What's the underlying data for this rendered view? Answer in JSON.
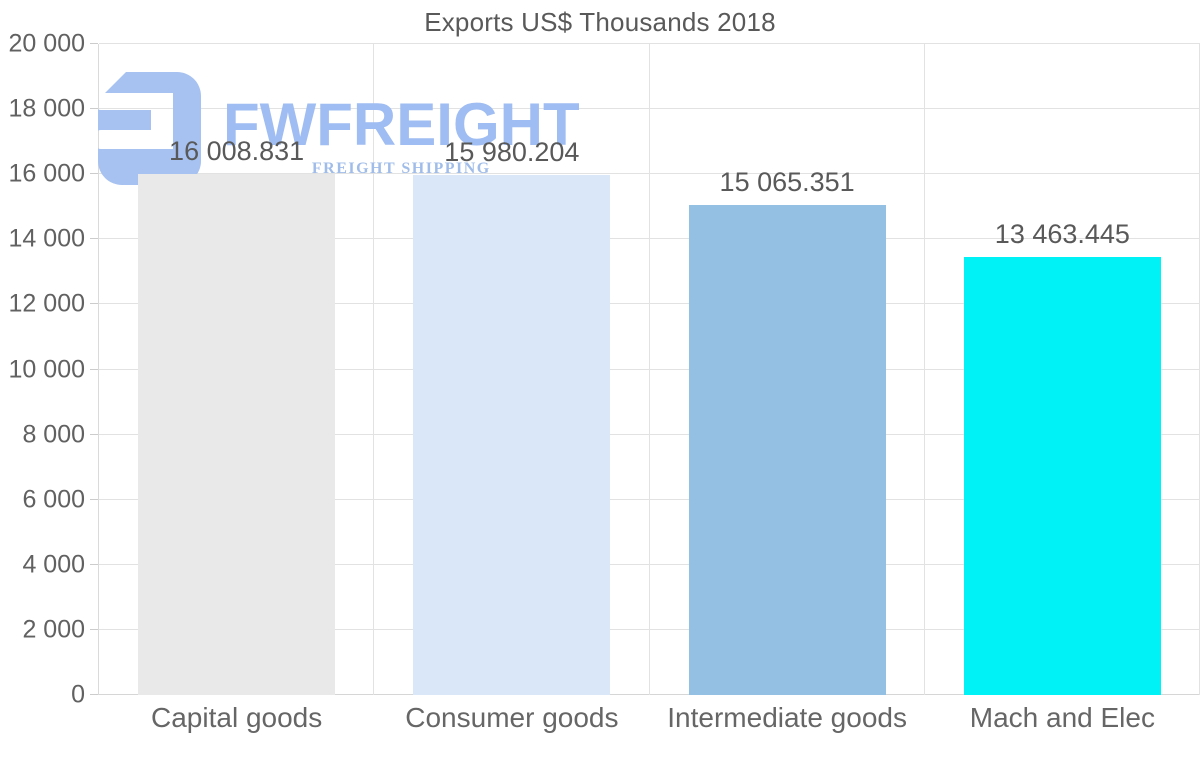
{
  "chart_data": {
    "type": "bar",
    "title": "Exports US$ Thousands 2018",
    "categories": [
      "Capital goods",
      "Consumer goods",
      "Intermediate goods",
      "Mach and Elec"
    ],
    "values": [
      16008.831,
      15980.204,
      15065.351,
      13463.445
    ],
    "value_labels": [
      "16 008.831",
      "15 980.204",
      "15 065.351",
      "13 463.445"
    ],
    "bar_colors": [
      "#e9e9e9",
      "#d9e7f8",
      "#94c0e3",
      "#00f2f7"
    ],
    "xlabel": "",
    "ylabel": "",
    "ylim": [
      0,
      20000
    ],
    "ytick_step": 2000,
    "ytick_labels": [
      "0",
      "2 000",
      "4 000",
      "6 000",
      "8 000",
      "10 000",
      "12 000",
      "14 000",
      "16 000",
      "18 000",
      "20 000"
    ],
    "grid": true,
    "legend": false,
    "category_boundary_lines_pct": [
      25,
      50,
      75,
      100
    ]
  },
  "watermark": {
    "brand": "FWFREIGHT",
    "tagline": "FREIGHT SHIPPING",
    "logo_color": "#a7c2f1",
    "brand_color": "#9fbdf2",
    "tagline_color": "#a0bce9"
  },
  "style_colors": {
    "title_text": "#595959",
    "axis_text": "#616161",
    "gridline": "#e2e2e2"
  }
}
